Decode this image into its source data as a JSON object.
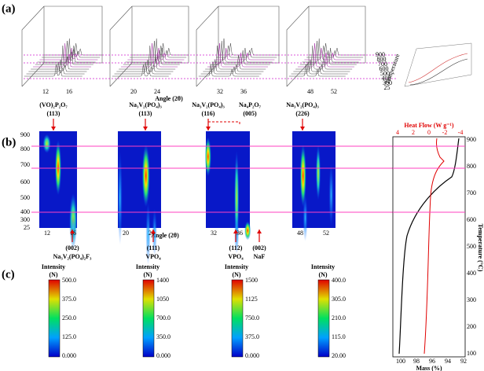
{
  "panel_labels": [
    "(a)",
    "(b)",
    "(c)"
  ],
  "panel_a": {
    "angle_label": "Angle (2θ)",
    "temperature_label": "Temperature",
    "x_ticks": [
      [
        "12",
        "16"
      ],
      [
        "20",
        "24"
      ],
      [
        "32",
        "36"
      ],
      [
        "48",
        "52"
      ]
    ],
    "temperature_ticks": [
      "900",
      "800",
      "700",
      "600",
      "500",
      "400",
      "300",
      "25"
    ]
  },
  "panel_b": {
    "angle_label": "Angle (2θ)",
    "y_ticks": [
      "900",
      "800",
      "700",
      "600",
      "500",
      "400",
      "300",
      "25"
    ],
    "heatmaps": [
      {
        "x_ticks": [
          "12",
          "16"
        ],
        "top_labels": [
          {
            "phase": "(VO)₂P₂O₇",
            "hkl": "(113)"
          }
        ],
        "bottom_labels": [
          {
            "hkl": "(002)",
            "phase": "Na₃V₂(PO₄)₂F₃"
          }
        ]
      },
      {
        "x_ticks": [
          "20",
          "24"
        ],
        "top_labels": [
          {
            "phase": "Na₃V₂(PO₄)₃",
            "hkl": "(113)"
          }
        ],
        "bottom_labels": [
          {
            "hkl": "(111)",
            "phase": "VPO₄"
          }
        ]
      },
      {
        "x_ticks": [
          "32",
          "36"
        ],
        "top_labels": [
          {
            "phase": "Na₃V₂(PO₄)₃",
            "hkl": "(116)"
          },
          {
            "phase": "Na₄P₂O₇",
            "hkl": "(005)"
          }
        ],
        "bottom_labels": [
          {
            "hkl": "(112)",
            "phase": "VPO₄"
          },
          {
            "hkl": "(002)",
            "phase": "NaF"
          }
        ]
      },
      {
        "x_ticks": [
          "48",
          "52"
        ],
        "top_labels": [
          {
            "phase": "Na₃V₂(PO₄)₃",
            "hkl": "(226)"
          }
        ],
        "bottom_labels": []
      }
    ],
    "tg": {
      "heat_flow_label": "Heat Flow (W g⁻¹)",
      "heat_flow_ticks": [
        "4",
        "2",
        "0",
        "-2",
        "-4"
      ],
      "temperature_label": "Temperature (°C)",
      "temperature_ticks": [
        "900",
        "800",
        "700",
        "600",
        "500",
        "400",
        "300",
        "200",
        "100"
      ],
      "mass_label": "Mass (%)",
      "mass_ticks": [
        "100",
        "98",
        "96",
        "94",
        "92"
      ]
    }
  },
  "panel_c": {
    "colorbars": [
      {
        "title": "Intensity",
        "unit": "(N)",
        "ticks": [
          "500.0",
          "375.0",
          "250.0",
          "125.0",
          "0.000"
        ]
      },
      {
        "title": "Intensity",
        "unit": "(N)",
        "ticks": [
          "1400",
          "1050",
          "700.0",
          "350.0",
          "0.000"
        ]
      },
      {
        "title": "Intensity",
        "unit": "(N)",
        "ticks": [
          "1500",
          "1125",
          "750.0",
          "375.0",
          "0.000"
        ]
      },
      {
        "title": "Intensity",
        "unit": "(N)",
        "ticks": [
          "400.0",
          "305.0",
          "210.0",
          "115.0",
          "20.00"
        ]
      }
    ]
  }
}
